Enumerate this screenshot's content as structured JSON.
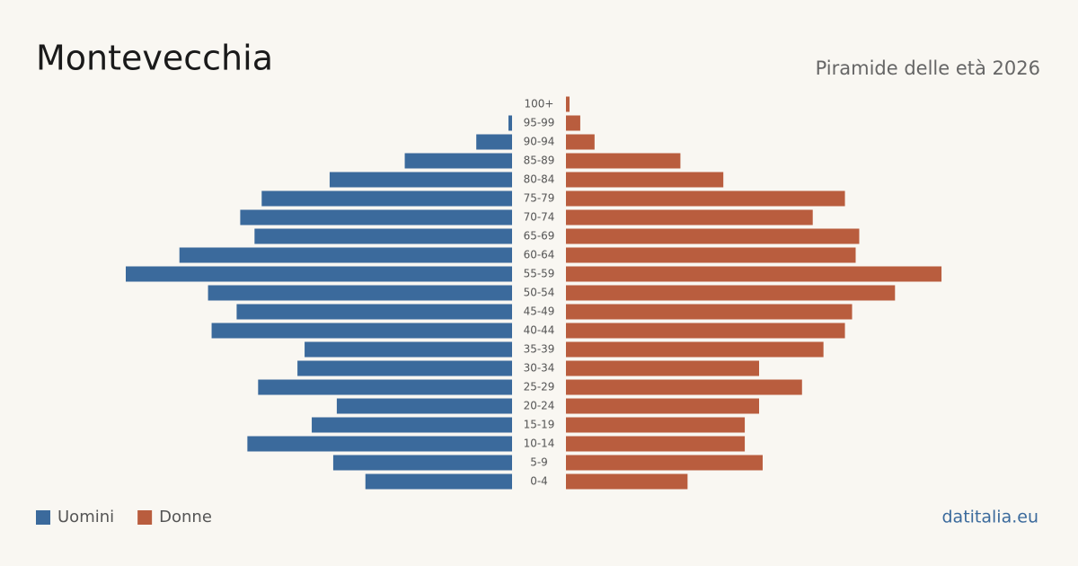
{
  "chart_data": {
    "type": "pyramid",
    "title": "Montevecchia",
    "subtitle": "Piramide delle età 2026",
    "source": "datitalia.eu",
    "categories": [
      "100+",
      "95-99",
      "90-94",
      "85-89",
      "80-84",
      "75-79",
      "70-74",
      "65-69",
      "60-64",
      "55-59",
      "50-54",
      "45-49",
      "40-44",
      "35-39",
      "30-34",
      "25-29",
      "20-24",
      "15-19",
      "10-14",
      "5-9",
      "0-4"
    ],
    "series": [
      {
        "name": "Uomini",
        "color": "#3b6a9c",
        "values": [
          0,
          1,
          10,
          30,
          51,
          70,
          76,
          72,
          93,
          108,
          85,
          77,
          84,
          58,
          60,
          71,
          49,
          56,
          74,
          50,
          41
        ]
      },
      {
        "name": "Donne",
        "color": "#b95d3e",
        "values": [
          1,
          4,
          8,
          32,
          44,
          78,
          69,
          82,
          81,
          105,
          92,
          80,
          78,
          72,
          54,
          66,
          54,
          50,
          50,
          55,
          34
        ]
      }
    ]
  }
}
